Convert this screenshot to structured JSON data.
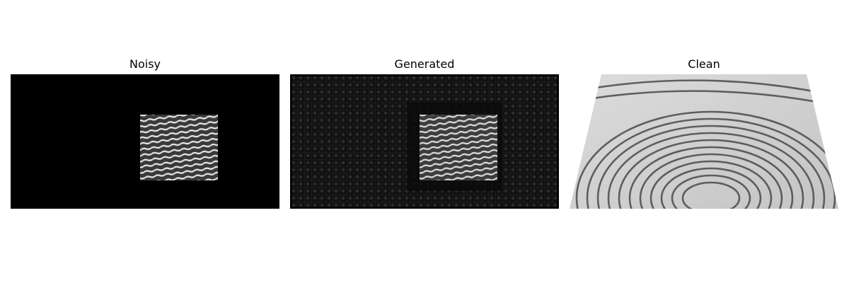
{
  "panels": [
    {
      "title": "Noisy"
    },
    {
      "title": "Generated"
    },
    {
      "title": "Clean"
    }
  ],
  "background_color": "#ffffff"
}
